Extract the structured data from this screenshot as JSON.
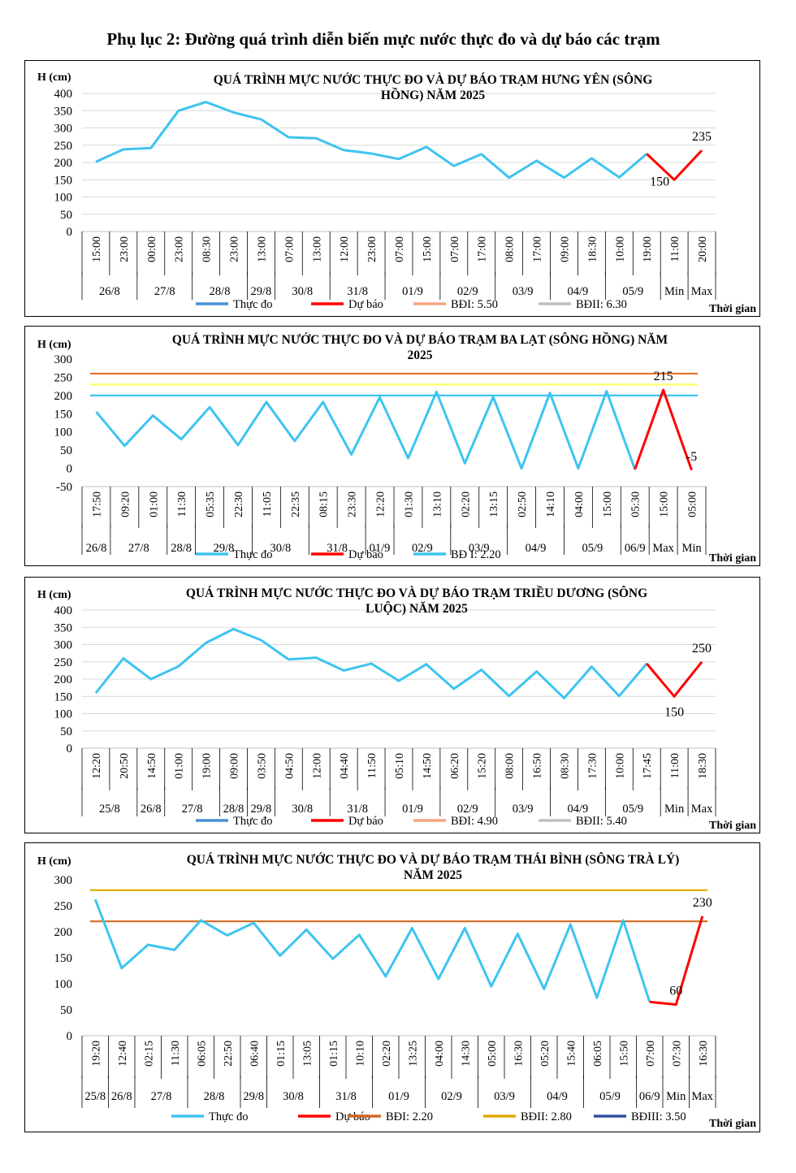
{
  "page_title": "Phụ lục 2: Đường quá trình diễn biến mực nước thực đo và dự báo các trạm",
  "chart_data": [
    {
      "type": "line",
      "title_lines": [
        "QUÁ TRÌNH MỰC NƯỚC THỰC ĐO VÀ DỰ BÁO TRẠM HƯNG YÊN  (SÔNG",
        "HỒNG)  NĂM 2025"
      ],
      "ylabel": "H (cm)",
      "xlabel": "Thời gian",
      "ylim": [
        0,
        400
      ],
      "yticks": [
        0,
        50,
        100,
        150,
        200,
        250,
        300,
        350,
        400
      ],
      "gridlines": [
        0,
        50,
        100,
        150,
        200,
        250,
        300,
        350,
        400
      ],
      "times": [
        "15:00",
        "23:00",
        "00:00",
        "23:00",
        "08:30",
        "23:00",
        "13:00",
        "07:00",
        "13:00",
        "12:00",
        "23:00",
        "07:00",
        "15:00",
        "07:00",
        "17:00",
        "08:00",
        "17:00",
        "09:00",
        "18:30",
        "10:00",
        "19:00",
        "11:00",
        "20:00"
      ],
      "days": [
        {
          "label": "26/8",
          "span": 2
        },
        {
          "label": "27/8",
          "span": 2
        },
        {
          "label": "28/8",
          "span": 2
        },
        {
          "label": "29/8",
          "span": 1
        },
        {
          "label": "30/8",
          "span": 2
        },
        {
          "label": "31/8",
          "span": 2
        },
        {
          "label": "01/9",
          "span": 2
        },
        {
          "label": "02/9",
          "span": 2
        },
        {
          "label": "03/9",
          "span": 2
        },
        {
          "label": "04/9",
          "span": 2
        },
        {
          "label": "05/9",
          "span": 2
        },
        {
          "label": "Min",
          "span": 1
        },
        {
          "label": "Max",
          "span": 1
        }
      ],
      "observed": {
        "name": "Thực đo",
        "color": "#3ec4f0",
        "values": [
          202,
          238,
          242,
          350,
          375,
          345,
          325,
          273,
          270,
          236,
          226,
          210,
          245,
          190,
          224,
          156,
          205,
          156,
          212,
          157,
          225
        ]
      },
      "forecast": {
        "name": "Dự báo",
        "color": "#ff0000",
        "start_index": 20,
        "values": [
          225,
          150,
          235
        ]
      },
      "data_labels": [
        {
          "index": 21,
          "text": "150",
          "pos": "right"
        },
        {
          "index": 22,
          "text": "235",
          "pos": "above"
        }
      ],
      "thresholds": [],
      "legend": [
        {
          "name": "Thực đo",
          "color": "#4a90d9"
        },
        {
          "name": "Dự báo",
          "color": "#ff0000"
        },
        {
          "name": "BĐI: 5.50",
          "color": "#f4a582"
        },
        {
          "name": "BĐII: 6.30",
          "color": "#c0c0c0"
        }
      ]
    },
    {
      "type": "line",
      "title_lines": [
        "QUÁ TRÌNH MỰC NƯỚC THỰC ĐO VÀ DỰ BÁO TRẠM BA LẠT (SÔNG HỒNG) NĂM",
        "2025"
      ],
      "ylabel": "H (cm)",
      "xlabel": "Thời gian",
      "ylim": [
        -50,
        300
      ],
      "yticks": [
        -50,
        0,
        50,
        100,
        150,
        200,
        250,
        300
      ],
      "gridlines": [],
      "times": [
        "17:50",
        "09:20",
        "01:00",
        "11:30",
        "05:35",
        "22:30",
        "11:05",
        "22:35",
        "08:15",
        "23:30",
        "12:20",
        "01:30",
        "13:10",
        "02:20",
        "13:15",
        "02:50",
        "14:10",
        "04:00",
        "15:00",
        "05:30",
        "15:00",
        "05:00"
      ],
      "days": [
        {
          "label": "26/8",
          "span": 1
        },
        {
          "label": "27/8",
          "span": 2
        },
        {
          "label": "28/8",
          "span": 1
        },
        {
          "label": "29/8",
          "span": 2
        },
        {
          "label": "30/8",
          "span": 2
        },
        {
          "label": "31/8",
          "span": 2
        },
        {
          "label": "01/9",
          "span": 1
        },
        {
          "label": "02/9",
          "span": 2
        },
        {
          "label": "03/9",
          "span": 2
        },
        {
          "label": "04/9",
          "span": 2
        },
        {
          "label": "05/9",
          "span": 2
        },
        {
          "label": "06/9",
          "span": 1
        },
        {
          "label": "Max",
          "span": 1
        },
        {
          "label": "Min",
          "span": 1
        }
      ],
      "observed": {
        "name": "Thực đo",
        "color": "#3ec4f0",
        "values": [
          155,
          62,
          145,
          80,
          168,
          64,
          182,
          75,
          182,
          38,
          195,
          28,
          210,
          14,
          196,
          0,
          207,
          0,
          212,
          -3
        ]
      },
      "forecast": {
        "name": "Dự báo",
        "color": "#ff0000",
        "start_index": 19,
        "values": [
          -3,
          215,
          -5
        ]
      },
      "data_labels": [
        {
          "index": 20,
          "text": "215",
          "pos": "above"
        },
        {
          "index": 21,
          "text": "-5",
          "pos": "above"
        }
      ],
      "thresholds": [
        {
          "value": 260,
          "color": "#e8732b"
        },
        {
          "value": 230,
          "color": "#ffff66"
        },
        {
          "value": 200,
          "color": "#3ec4f0"
        }
      ],
      "legend": [
        {
          "name": "Thực đo",
          "color": "#3ec4f0"
        },
        {
          "name": "Dự báo",
          "color": "#ff0000"
        },
        {
          "name": "BĐ I: 2.20",
          "color": "#3ec4f0"
        }
      ]
    },
    {
      "type": "line",
      "title_lines": [
        "QUÁ TRÌNH MỰC NƯỚC THỰC ĐO VÀ DỰ BÁO TRẠM  TRIỀU DƯƠNG (SÔNG",
        "LUỘC) NĂM 2025"
      ],
      "ylabel": "H (cm)",
      "xlabel": "Thời gian",
      "ylim": [
        0,
        400
      ],
      "yticks": [
        0,
        50,
        100,
        150,
        200,
        250,
        300,
        350,
        400
      ],
      "gridlines": [
        0,
        50,
        100,
        150,
        200,
        250,
        300,
        350,
        400
      ],
      "times": [
        "12:20",
        "20:50",
        "14:50",
        "01:00",
        "19:00",
        "09:00",
        "03:50",
        "04:50",
        "12:00",
        "04:40",
        "11:50",
        "05:10",
        "14:50",
        "06:20",
        "15:20",
        "08:00",
        "16:50",
        "08:30",
        "17:30",
        "10:00",
        "17:45",
        "11:00",
        "18:30"
      ],
      "days": [
        {
          "label": "25/8",
          "span": 2
        },
        {
          "label": "26/8",
          "span": 1
        },
        {
          "label": "27/8",
          "span": 2
        },
        {
          "label": "28/8",
          "span": 1
        },
        {
          "label": "29/8",
          "span": 1
        },
        {
          "label": "30/8",
          "span": 2
        },
        {
          "label": "31/8",
          "span": 2
        },
        {
          "label": "01/9",
          "span": 2
        },
        {
          "label": "02/9",
          "span": 2
        },
        {
          "label": "03/9",
          "span": 2
        },
        {
          "label": "04/9",
          "span": 2
        },
        {
          "label": "05/9",
          "span": 2
        },
        {
          "label": "Min",
          "span": 1
        },
        {
          "label": "Max",
          "span": 1
        }
      ],
      "observed": {
        "name": "Thực đo",
        "color": "#3ec4f0",
        "values": [
          160,
          260,
          200,
          237,
          305,
          345,
          313,
          257,
          262,
          225,
          245,
          195,
          243,
          172,
          227,
          151,
          222,
          145,
          236,
          151,
          245
        ]
      },
      "forecast": {
        "name": "Dự báo",
        "color": "#ff0000",
        "start_index": 20,
        "values": [
          245,
          150,
          250
        ]
      },
      "data_labels": [
        {
          "index": 21,
          "text": "150",
          "pos": "below"
        },
        {
          "index": 22,
          "text": "250",
          "pos": "above"
        }
      ],
      "thresholds": [],
      "legend": [
        {
          "name": "Thực đo",
          "color": "#4a90d9"
        },
        {
          "name": "Dự báo",
          "color": "#ff0000"
        },
        {
          "name": "BĐI: 4.90",
          "color": "#f4a582"
        },
        {
          "name": "BĐII: 5.40",
          "color": "#c0c0c0"
        }
      ]
    },
    {
      "type": "line",
      "title_lines": [
        "QUÁ TRÌNH MỰC NƯỚC THỰC ĐO VÀ DỰ BÁO TRẠM THÁI BÌNH (SÔNG TRÀ LÝ)",
        "NĂM 2025"
      ],
      "ylabel": "H (cm)",
      "xlabel": "Thời gian",
      "ylim": [
        0,
        300
      ],
      "yticks": [
        0,
        50,
        100,
        150,
        200,
        250,
        300
      ],
      "gridlines": [],
      "times": [
        "19:20",
        "12:40",
        "02:15",
        "11:30",
        "06:05",
        "22:50",
        "06:40",
        "01:15",
        "13:05",
        "01:15",
        "10:10",
        "02:20",
        "13:25",
        "04:00",
        "14:30",
        "05:00",
        "16:30",
        "05:20",
        "15:40",
        "06:05",
        "15:50",
        "07:00",
        "07:30",
        "16:30"
      ],
      "days": [
        {
          "label": "25/8",
          "span": 1
        },
        {
          "label": "26/8",
          "span": 1
        },
        {
          "label": "27/8",
          "span": 2
        },
        {
          "label": "28/8",
          "span": 2
        },
        {
          "label": "29/8",
          "span": 1
        },
        {
          "label": "30/8",
          "span": 2
        },
        {
          "label": "31/8",
          "span": 2
        },
        {
          "label": "01/9",
          "span": 2
        },
        {
          "label": "02/9",
          "span": 2
        },
        {
          "label": "03/9",
          "span": 2
        },
        {
          "label": "04/9",
          "span": 2
        },
        {
          "label": "05/9",
          "span": 2
        },
        {
          "label": "06/9",
          "span": 1
        },
        {
          "label": "Min",
          "span": 1
        },
        {
          "label": "Max",
          "span": 1
        }
      ],
      "observed": {
        "name": "Thực đo",
        "color": "#3ec4f0",
        "values": [
          262,
          130,
          175,
          165,
          222,
          193,
          217,
          154,
          204,
          148,
          194,
          114,
          207,
          109,
          207,
          95,
          196,
          90,
          214,
          73,
          222,
          65
        ]
      },
      "forecast": {
        "name": "Dự báo",
        "color": "#ff0000",
        "start_index": 21,
        "values": [
          65,
          60,
          230
        ]
      },
      "data_labels": [
        {
          "index": 22,
          "text": "60",
          "pos": "above"
        },
        {
          "index": 23,
          "text": "230",
          "pos": "above"
        }
      ],
      "thresholds": [
        {
          "value": 280,
          "color": "#e0a800"
        },
        {
          "value": 220,
          "color": "#d2691e"
        }
      ],
      "legend": [
        {
          "name": "Thực đo",
          "color": "#3ec4f0"
        },
        {
          "name": "Dự báo",
          "color": "#ff0000"
        },
        {
          "name": "BĐI: 2.20",
          "color": "#d2691e"
        },
        {
          "name": "BĐII: 2.80",
          "color": "#e0a800"
        },
        {
          "name": "BĐIII: 3.50",
          "color": "#2f4f9f"
        }
      ]
    }
  ]
}
